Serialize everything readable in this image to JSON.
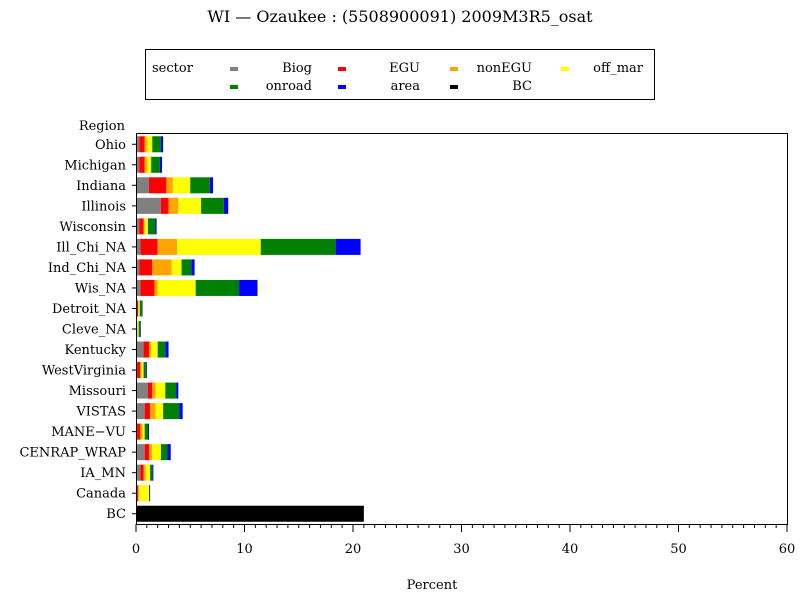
{
  "chart_data": {
    "type": "bar",
    "orientation": "horizontal",
    "stacked": true,
    "title": "WI — Ozaukee : (5508900091) 2009M3R5_osat",
    "xlabel": "Percent",
    "ylabel": "Region",
    "xlim": [
      0,
      60
    ],
    "xticks": [
      0,
      10,
      20,
      30,
      40,
      50,
      60
    ],
    "grid": false,
    "legend_title": "sector",
    "legend_position": "top",
    "categories": [
      "Ohio",
      "Michigan",
      "Indiana",
      "Illinois",
      "Wisconsin",
      "Ill_Chi_NA",
      "Ind_Chi_NA",
      "Wis_NA",
      "Detroit_NA",
      "Cleve_NA",
      "Kentucky",
      "WestVirginia",
      "Missouri",
      "VISTAS",
      "MANE−VU",
      "CENRAP_WRAP",
      "IA_MN",
      "Canada",
      "BC"
    ],
    "series": [
      {
        "name": "Biog",
        "color": "#808080",
        "values": [
          0.3,
          0.3,
          1.2,
          2.3,
          0.3,
          0.4,
          0.3,
          0.4,
          0.05,
          0.05,
          0.7,
          0.1,
          1.1,
          0.8,
          0.1,
          0.8,
          0.4,
          0.1,
          0
        ]
      },
      {
        "name": "EGU",
        "color": "#ff0000",
        "values": [
          0.5,
          0.5,
          1.6,
          0.7,
          0.4,
          1.6,
          1.2,
          1.3,
          0.15,
          0.05,
          0.5,
          0.3,
          0.4,
          0.5,
          0.3,
          0.4,
          0.3,
          0.1,
          0
        ]
      },
      {
        "name": "nonEGU",
        "color": "#ffa500",
        "values": [
          0.2,
          0.2,
          0.6,
          0.9,
          0.1,
          1.8,
          1.8,
          0.3,
          0.05,
          0.05,
          0.2,
          0.1,
          0.3,
          0.5,
          0.2,
          0.3,
          0.2,
          0.1,
          0
        ]
      },
      {
        "name": "off_mar",
        "color": "#ffff00",
        "values": [
          0.5,
          0.4,
          1.6,
          2.1,
          0.3,
          7.7,
          0.9,
          3.5,
          0.1,
          0.1,
          0.6,
          0.2,
          0.9,
          0.7,
          0.2,
          0.8,
          0.4,
          0.9,
          0
        ]
      },
      {
        "name": "onroad",
        "color": "#008000",
        "values": [
          0.8,
          0.8,
          1.8,
          2.1,
          0.7,
          6.9,
          0.9,
          4.0,
          0.2,
          0.15,
          0.7,
          0.2,
          1.0,
          1.5,
          0.3,
          0.6,
          0.2,
          0.05,
          0
        ]
      },
      {
        "name": "area",
        "color": "#0000ff",
        "values": [
          0.2,
          0.2,
          0.3,
          0.4,
          0.1,
          2.3,
          0.3,
          1.7,
          0.05,
          0.05,
          0.3,
          0.1,
          0.2,
          0.3,
          0.1,
          0.3,
          0.1,
          0.05,
          0
        ]
      },
      {
        "name": "BC",
        "color": "#000000",
        "values": [
          0,
          0,
          0,
          0,
          0,
          0,
          0,
          0,
          0,
          0,
          0,
          0,
          0,
          0,
          0,
          0,
          0,
          0,
          21.0
        ]
      }
    ]
  }
}
